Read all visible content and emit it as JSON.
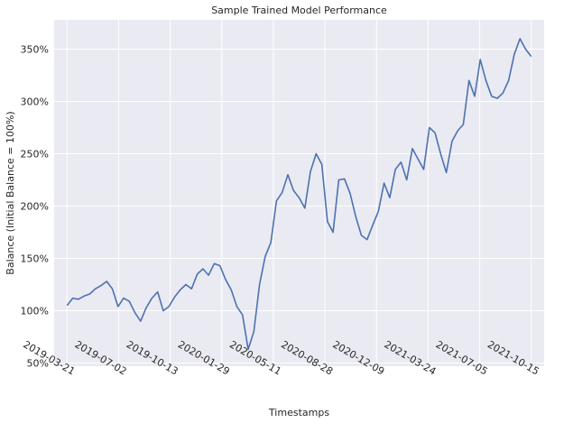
{
  "chart_data": {
    "type": "line",
    "title": "Sample Trained Model Performance",
    "xlabel": "Timestamps",
    "ylabel": "Balance (Initial Balance = 100%)",
    "x_tick_labels": [
      "2019-03-21",
      "2019-07-02",
      "2019-10-13",
      "2020-01-29",
      "2020-05-11",
      "2020-08-28",
      "2020-12-09",
      "2021-03-24",
      "2021-07-05",
      "2021-10-15"
    ],
    "y_ticks": [
      50,
      100,
      150,
      200,
      250,
      300,
      350
    ],
    "y_tick_labels": [
      "50%",
      "100%",
      "150%",
      "200%",
      "250%",
      "300%",
      "350%"
    ],
    "ylim": [
      47,
      378
    ],
    "x_index_range": [
      -1.25,
      46.25
    ],
    "grid": true,
    "line_color": "#4c72b0",
    "background_color": "#eaeaf2",
    "series": [
      {
        "name": "",
        "values": [
          105,
          112,
          111,
          114,
          116,
          121,
          124,
          128,
          121,
          104,
          112,
          109,
          98,
          90,
          103,
          112,
          118,
          100,
          104,
          113,
          120,
          125,
          121,
          135,
          140,
          134,
          145,
          143,
          130,
          120,
          104,
          96,
          63,
          80,
          125,
          152,
          165,
          205,
          213,
          230,
          215,
          208,
          198,
          233,
          250,
          240,
          185,
          175,
          225,
          226,
          212,
          190,
          172,
          168,
          182,
          195,
          222,
          208,
          235,
          242,
          225,
          255,
          245,
          235,
          275,
          270,
          250,
          232,
          262,
          272,
          278,
          320,
          305,
          340,
          320,
          305,
          303,
          308,
          320,
          345,
          360,
          350,
          343
        ]
      }
    ]
  }
}
